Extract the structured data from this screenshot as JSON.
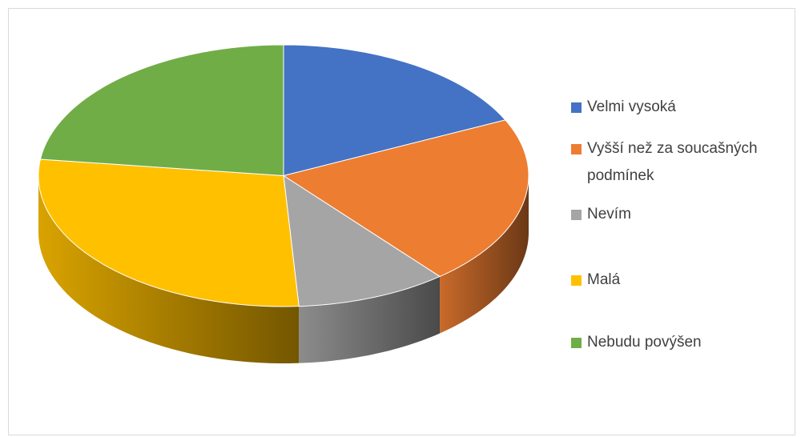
{
  "chart_data": {
    "type": "pie",
    "categories": [
      "Velmi vysoká",
      "Vyšší než za soucašných podmínek",
      "Nevím",
      "Malá",
      "Nebudu povýšen"
    ],
    "values": [
      18,
      21,
      10,
      28,
      23
    ],
    "colors": [
      "#4472c4",
      "#ed7d31",
      "#a5a5a5",
      "#ffc000",
      "#70ad47"
    ],
    "legend": "right"
  }
}
